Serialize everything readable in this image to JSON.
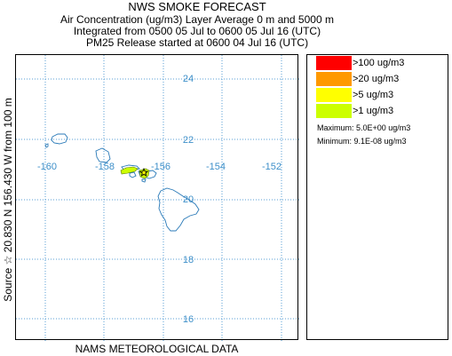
{
  "header": {
    "title": "NWS SMOKE FORECAST",
    "line2": "Air Concentration (ug/m3) Layer Average    0 m and  5000 m",
    "line3": "Integrated from 0500 05 Jul to 0600 05 Jul 16 (UTC)",
    "line4": "PM25 Release started at 0600 04 Jul 16 (UTC)"
  },
  "side_label": "Source ☆  20.830  N 156.430  W       from  100 m",
  "footer": "NAMS METEOROLOGICAL DATA",
  "map": {
    "lat_labels": [
      "24",
      "22",
      "20",
      "18",
      "16"
    ],
    "lon_labels": [
      "-160",
      "-158",
      "-156",
      "-154",
      "-152"
    ],
    "grid_color": "#5a9fd4",
    "coast_color": "#2a7ab8",
    "smoke_color": "#ccff00",
    "source_symbol": "star-icon"
  },
  "legend": {
    "items": [
      {
        "label": ">100 ug/m3",
        "color": "#ff0000"
      },
      {
        "label": ">20 ug/m3",
        "color": "#ff9900"
      },
      {
        "label": ">5 ug/m3",
        "color": "#ffff00"
      },
      {
        "label": ">1 ug/m3",
        "color": "#ccff00"
      }
    ],
    "maximum": "Maximum: 5.0E+00 ug/m3",
    "minimum": "Minimum: 9.1E-08 ug/m3"
  }
}
